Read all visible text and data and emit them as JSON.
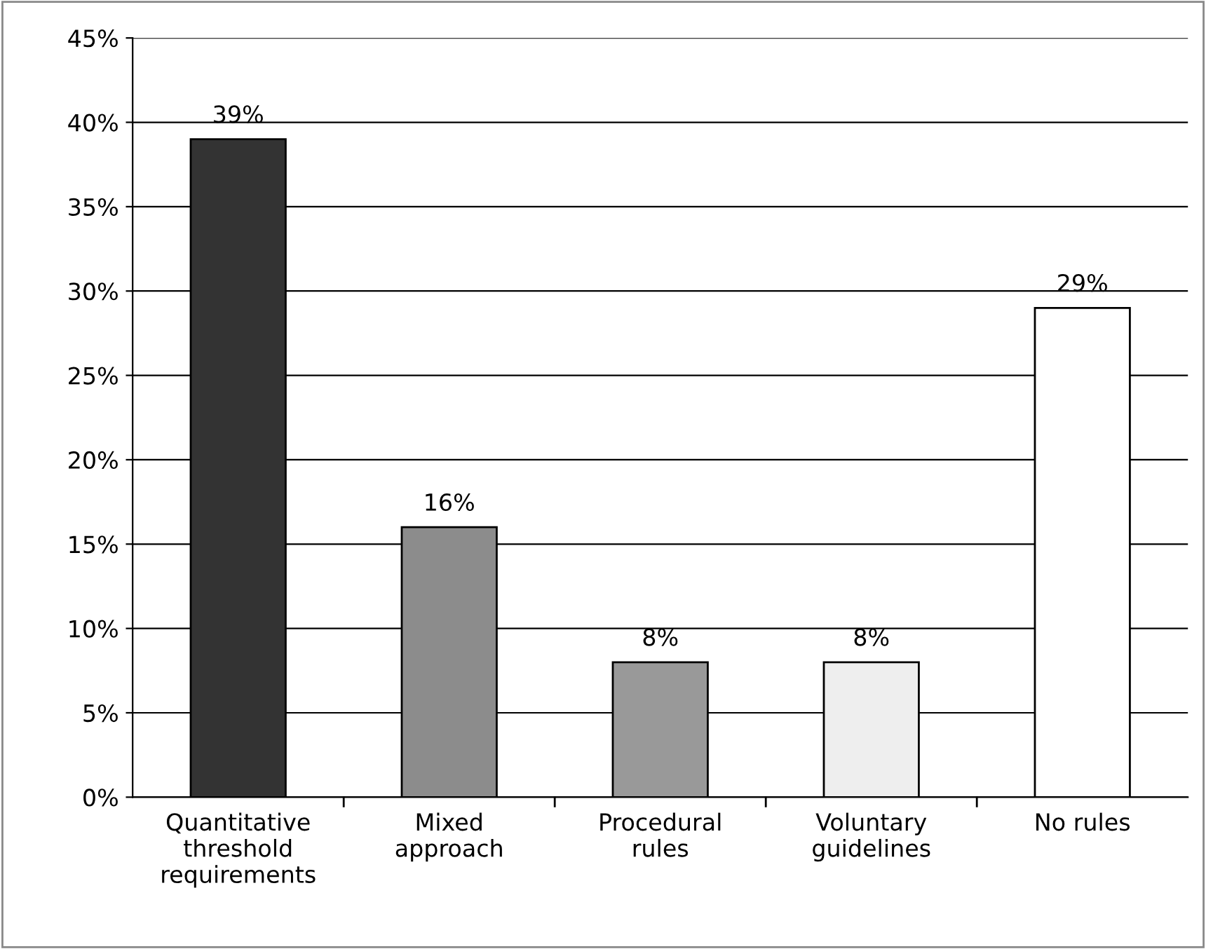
{
  "chart_data": {
    "type": "bar",
    "categories": [
      "Quantitative\nthreshold\nrequirements",
      "Mixed\napproach",
      "Procedural\nrules",
      "Voluntary\nguidelines",
      "No rules"
    ],
    "values": [
      39,
      16,
      8,
      8,
      29
    ],
    "colors": [
      "#333333",
      "#8c8c8c",
      "#999999",
      "#eeeeee",
      "#ffffff"
    ],
    "value_labels": [
      "39%",
      "16%",
      "8%",
      "8%",
      "29%"
    ],
    "ylim": [
      0,
      45
    ],
    "yticks": [
      {
        "value": 0,
        "label": "0%"
      },
      {
        "value": 5,
        "label": "5%"
      },
      {
        "value": 10,
        "label": "10%"
      },
      {
        "value": 15,
        "label": "15%"
      },
      {
        "value": 20,
        "label": "20%"
      },
      {
        "value": 25,
        "label": "25%"
      },
      {
        "value": 30,
        "label": "30%"
      },
      {
        "value": 35,
        "label": "35%"
      },
      {
        "value": 40,
        "label": "40%"
      },
      {
        "value": 45,
        "label": "45%"
      }
    ],
    "grid": "y",
    "legend": false
  }
}
